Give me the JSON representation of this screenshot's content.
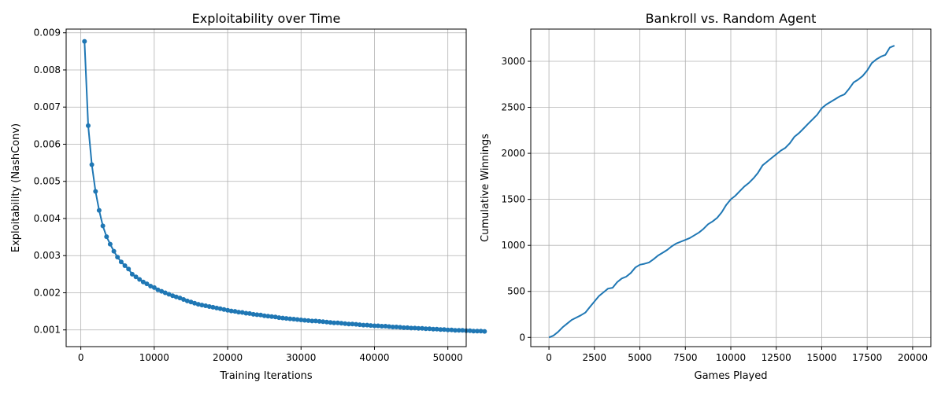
{
  "colors": {
    "line": "#1f77b4",
    "grid": "#b0b0b0",
    "axis": "#000000",
    "background": "#ffffff"
  },
  "chart_data": [
    {
      "type": "line",
      "title": "Exploitability over Time",
      "xlabel": "Training Iterations",
      "ylabel": "Exploitability (NashConv)",
      "grid": true,
      "markers": true,
      "xlim": [
        -2000,
        52500
      ],
      "ylim": [
        0.00055,
        0.0091
      ],
      "xticks": [
        0,
        10000,
        20000,
        30000,
        40000,
        50000
      ],
      "xtick_labels": [
        "0",
        "10000",
        "20000",
        "30000",
        "40000",
        "50000"
      ],
      "yticks": [
        0.001,
        0.002,
        0.003,
        0.004,
        0.005,
        0.006,
        0.007,
        0.008,
        0.009
      ],
      "ytick_labels": [
        "0.001",
        "0.002",
        "0.003",
        "0.004",
        "0.005",
        "0.006",
        "0.007",
        "0.008",
        "0.009"
      ],
      "series": [
        {
          "x_start": 500,
          "x_step": 500,
          "values": [
            0.00877,
            0.0065,
            0.00545,
            0.00473,
            0.00422,
            0.0038,
            0.00351,
            0.00331,
            0.00312,
            0.00296,
            0.00283,
            0.00273,
            0.00264,
            0.0025,
            0.00243,
            0.00236,
            0.00229,
            0.00224,
            0.00218,
            0.00214,
            0.00208,
            0.00204,
            0.002,
            0.00196,
            0.00192,
            0.00189,
            0.00186,
            0.00182,
            0.00178,
            0.00175,
            0.00172,
            0.00169,
            0.00167,
            0.00165,
            0.00163,
            0.00161,
            0.00159,
            0.00157,
            0.00155,
            0.00153,
            0.00151,
            0.0015,
            0.00148,
            0.00147,
            0.00145,
            0.00144,
            0.00142,
            0.00141,
            0.0014,
            0.00138,
            0.00137,
            0.00136,
            0.00135,
            0.00133,
            0.00132,
            0.00131,
            0.0013,
            0.00129,
            0.00128,
            0.00127,
            0.00126,
            0.00125,
            0.00124,
            0.00124,
            0.00123,
            0.00122,
            0.00121,
            0.0012,
            0.00119,
            0.00119,
            0.00118,
            0.00117,
            0.00116,
            0.00116,
            0.00115,
            0.00114,
            0.00113,
            0.00113,
            0.00112,
            0.00111,
            0.00111,
            0.0011,
            0.0011,
            0.00109,
            0.00108,
            0.00108,
            0.00107,
            0.00106,
            0.00106,
            0.00105,
            0.00105,
            0.00104,
            0.00104,
            0.00103,
            0.00103,
            0.00102,
            0.00102,
            0.00101,
            0.00101,
            0.001,
            0.001,
            0.00099,
            0.00099,
            0.00099,
            0.00098,
            0.00098,
            0.00097,
            0.00097,
            0.00097,
            0.00096
          ]
        }
      ]
    },
    {
      "type": "line",
      "title": "Bankroll vs. Random Agent",
      "xlabel": "Games Played",
      "ylabel": "Cumulative Winnings",
      "grid": true,
      "markers": false,
      "xlim": [
        -1000,
        21000
      ],
      "ylim": [
        -100,
        3350
      ],
      "xticks": [
        0,
        2500,
        5000,
        7500,
        10000,
        12500,
        15000,
        17500,
        20000
      ],
      "xtick_labels": [
        "0",
        "2500",
        "5000",
        "7500",
        "10000",
        "12500",
        "15000",
        "17500",
        "20000"
      ],
      "yticks": [
        0,
        500,
        1000,
        1500,
        2000,
        2500,
        3000
      ],
      "ytick_labels": [
        "0",
        "500",
        "1000",
        "1500",
        "2000",
        "2500",
        "3000"
      ],
      "series": [
        {
          "x_start": 0,
          "x_step": 250,
          "values": [
            0,
            20,
            60,
            110,
            150,
            190,
            215,
            240,
            270,
            330,
            390,
            450,
            490,
            530,
            540,
            600,
            640,
            660,
            700,
            760,
            790,
            800,
            815,
            850,
            890,
            920,
            950,
            990,
            1020,
            1040,
            1060,
            1080,
            1110,
            1140,
            1180,
            1230,
            1260,
            1300,
            1360,
            1440,
            1500,
            1540,
            1590,
            1640,
            1680,
            1730,
            1790,
            1870,
            1910,
            1950,
            1990,
            2030,
            2060,
            2110,
            2180,
            2220,
            2270,
            2320,
            2370,
            2420,
            2490,
            2530,
            2560,
            2590,
            2620,
            2640,
            2700,
            2770,
            2800,
            2840,
            2900,
            2980,
            3020,
            3050,
            3070,
            3150,
            3170
          ]
        }
      ]
    }
  ]
}
